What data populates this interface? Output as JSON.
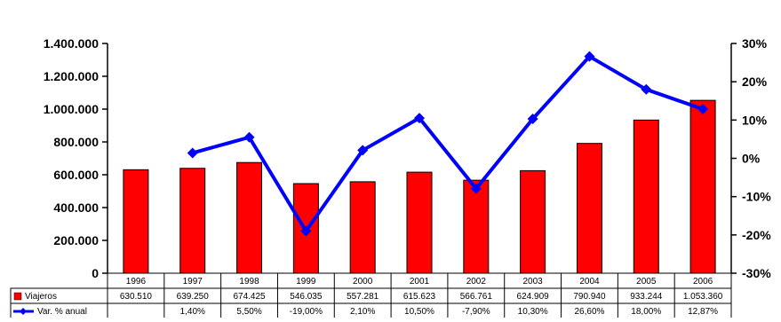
{
  "chart_data": {
    "type": "bar+line",
    "categories": [
      "1996",
      "1997",
      "1998",
      "1999",
      "2000",
      "2001",
      "2002",
      "2003",
      "2004",
      "2005",
      "2006"
    ],
    "series": [
      {
        "name": "Viajeros",
        "kind": "bar",
        "axis": "left",
        "color": "#ff0000",
        "values": [
          630510,
          639250,
          674425,
          546035,
          557281,
          615623,
          566761,
          624909,
          790940,
          933244,
          1053360
        ],
        "labels": [
          "630.510",
          "639.250",
          "674.425",
          "546.035",
          "557.281",
          "615.623",
          "566.761",
          "624.909",
          "790.940",
          "933.244",
          "1.053.360"
        ]
      },
      {
        "name": "Var. % anual",
        "kind": "line",
        "axis": "right",
        "color": "#0000ff",
        "values": [
          null,
          1.4,
          5.5,
          -19.0,
          2.1,
          10.5,
          -7.9,
          10.3,
          26.6,
          18.0,
          12.87
        ],
        "labels": [
          "",
          "1,40%",
          "5,50%",
          "-19,00%",
          "2,10%",
          "10,50%",
          "-7,90%",
          "10,30%",
          "26,60%",
          "18,00%",
          "12,87%"
        ]
      }
    ],
    "left_axis": {
      "ylim": [
        0,
        1400000
      ],
      "ticks": [
        0,
        200000,
        400000,
        600000,
        800000,
        1000000,
        1200000,
        1400000
      ],
      "tick_labels": [
        "0",
        "200.000",
        "400.000",
        "600.000",
        "800.000",
        "1.000.000",
        "1.200.000",
        "1.400.000"
      ]
    },
    "right_axis": {
      "ylim": [
        -30,
        30
      ],
      "ticks": [
        -30,
        -20,
        -10,
        0,
        10,
        20,
        30
      ],
      "tick_labels": [
        "-30%",
        "-20%",
        "-10%",
        "0%",
        "10%",
        "20%",
        "30%"
      ]
    },
    "grid": false,
    "legend": "data-table-below"
  }
}
